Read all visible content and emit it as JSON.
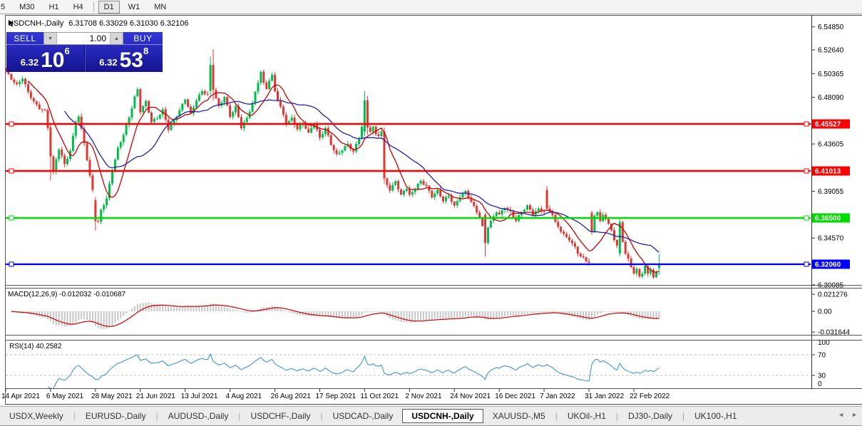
{
  "toolbar": {
    "buttons": [
      "5",
      "M30",
      "H1",
      "H4",
      "D1",
      "W1",
      "MN"
    ],
    "active": "D1"
  },
  "chart": {
    "symbol_title": "USDCNH-,Daily",
    "ohlc_text": "6.31708 6.33029 6.31030 6.32106"
  },
  "trade_panel": {
    "sell_label": "SELL",
    "buy_label": "BUY",
    "volume": "1.00",
    "sell_price": {
      "small": "6.32",
      "big": "10",
      "sup": "6"
    },
    "buy_price": {
      "small": "6.32",
      "big": "53",
      "sup": "8"
    }
  },
  "tabs": {
    "items": [
      {
        "label": "USDX,Weekly",
        "active": false
      },
      {
        "label": "EURUSD-,Daily",
        "active": false
      },
      {
        "label": "AUDUSD-,Daily",
        "active": false
      },
      {
        "label": "USDCHF-,Daily",
        "active": false
      },
      {
        "label": "USDCAD-,Daily",
        "active": false
      },
      {
        "label": "USDCNH-,Daily",
        "active": true
      },
      {
        "label": "XAUUSD-,M5",
        "active": false
      },
      {
        "label": "UKOil-,H1",
        "active": false
      },
      {
        "label": "DJ30-,Daily",
        "active": false
      },
      {
        "label": "UK100-,H1",
        "active": false
      }
    ],
    "nav_left": "◄",
    "nav_right": "►"
  },
  "chart_data": {
    "type": "candlestick",
    "symbol": "USDCNH-",
    "timeframe": "Daily",
    "title": "USDCNH-,Daily",
    "last_candle": {
      "open": 6.31708,
      "high": 6.33029,
      "low": 6.3103,
      "close": 6.32106
    },
    "ylim": [
      6.30085,
      6.5485
    ],
    "price_axis_ticks": [
      "6.54850",
      "6.52640",
      "6.50365",
      "6.48090",
      "6.43605",
      "6.39055",
      "6.34570",
      "6.30085"
    ],
    "hlines": [
      {
        "value": 6.45527,
        "label": "6.45527",
        "color": "#ff0000"
      },
      {
        "value": 6.41013,
        "label": "6.41013",
        "color": "#ff0000"
      },
      {
        "value": 6.365,
        "label": "6.36500",
        "color": "#00dc00"
      },
      {
        "value": 6.3206,
        "label": "6.32060",
        "color": "#0000ff"
      }
    ],
    "time_labels": [
      {
        "label": "14 Apr 2021",
        "bar": 0
      },
      {
        "label": "6 May 2021",
        "bar": 16
      },
      {
        "label": "28 May 2021",
        "bar": 32
      },
      {
        "label": "21 Jun 2021",
        "bar": 48
      },
      {
        "label": "13 Jul 2021",
        "bar": 64
      },
      {
        "label": "4 Aug 2021",
        "bar": 80
      },
      {
        "label": "26 Aug 2021",
        "bar": 96
      },
      {
        "label": "17 Sep 2021",
        "bar": 112
      },
      {
        "label": "11 Oct 2021",
        "bar": 128
      },
      {
        "label": "2 Nov 2021",
        "bar": 144
      },
      {
        "label": "24 Nov 2021",
        "bar": 160
      },
      {
        "label": "16 Dec 2021",
        "bar": 176
      },
      {
        "label": "7 Jan 2022",
        "bar": 192
      },
      {
        "label": "31 Jan 2022",
        "bar": 208
      },
      {
        "label": "22 Feb 2022",
        "bar": 224
      }
    ],
    "bars_total": 234,
    "price_path_anchors": [
      [
        0,
        6.506
      ],
      [
        2,
        6.498
      ],
      [
        4,
        6.492
      ],
      [
        6,
        6.499
      ],
      [
        8,
        6.486
      ],
      [
        10,
        6.477
      ],
      [
        12,
        6.471
      ],
      [
        14,
        6.468
      ],
      [
        15,
        6.452
      ],
      [
        16,
        6.424
      ],
      [
        17,
        6.408
      ],
      [
        18,
        6.421
      ],
      [
        19,
        6.431
      ],
      [
        21,
        6.416
      ],
      [
        23,
        6.429
      ],
      [
        25,
        6.458
      ],
      [
        26,
        6.463
      ],
      [
        28,
        6.438
      ],
      [
        30,
        6.405
      ],
      [
        31,
        6.392
      ],
      [
        32,
        6.362
      ],
      [
        33,
        6.36
      ],
      [
        34,
        6.372
      ],
      [
        36,
        6.383
      ],
      [
        38,
        6.411
      ],
      [
        40,
        6.432
      ],
      [
        42,
        6.446
      ],
      [
        44,
        6.462
      ],
      [
        46,
        6.481
      ],
      [
        47,
        6.488
      ],
      [
        48,
        6.467
      ],
      [
        50,
        6.476
      ],
      [
        52,
        6.457
      ],
      [
        54,
        6.461
      ],
      [
        56,
        6.469
      ],
      [
        58,
        6.451
      ],
      [
        60,
        6.459
      ],
      [
        62,
        6.468
      ],
      [
        64,
        6.479
      ],
      [
        66,
        6.464
      ],
      [
        68,
        6.478
      ],
      [
        70,
        6.487
      ],
      [
        72,
        6.484
      ],
      [
        73,
        6.512
      ],
      [
        74,
        6.488
      ],
      [
        76,
        6.472
      ],
      [
        78,
        6.481
      ],
      [
        80,
        6.462
      ],
      [
        82,
        6.471
      ],
      [
        84,
        6.452
      ],
      [
        86,
        6.461
      ],
      [
        88,
        6.476
      ],
      [
        90,
        6.496
      ],
      [
        91,
        6.506
      ],
      [
        92,
        6.494
      ],
      [
        93,
        6.489
      ],
      [
        94,
        6.497
      ],
      [
        95,
        6.501
      ],
      [
        96,
        6.486
      ],
      [
        98,
        6.471
      ],
      [
        100,
        6.456
      ],
      [
        102,
        6.461
      ],
      [
        104,
        6.451
      ],
      [
        106,
        6.457
      ],
      [
        108,
        6.446
      ],
      [
        110,
        6.456
      ],
      [
        112,
        6.441
      ],
      [
        114,
        6.451
      ],
      [
        116,
        6.436
      ],
      [
        118,
        6.426
      ],
      [
        120,
        6.431
      ],
      [
        122,
        6.436
      ],
      [
        124,
        6.428
      ],
      [
        126,
        6.442
      ],
      [
        127,
        6.452
      ],
      [
        128,
        6.478
      ],
      [
        129,
        6.452
      ],
      [
        130,
        6.448
      ],
      [
        131,
        6.452
      ],
      [
        132,
        6.446
      ],
      [
        133,
        6.445
      ],
      [
        134,
        6.448
      ],
      [
        135,
        6.403
      ],
      [
        136,
        6.398
      ],
      [
        137,
        6.391
      ],
      [
        138,
        6.396
      ],
      [
        139,
        6.401
      ],
      [
        140,
        6.392
      ],
      [
        141,
        6.386
      ],
      [
        142,
        6.391
      ],
      [
        143,
        6.393
      ],
      [
        144,
        6.386
      ],
      [
        146,
        6.394
      ],
      [
        148,
        6.401
      ],
      [
        150,
        6.396
      ],
      [
        152,
        6.386
      ],
      [
        154,
        6.391
      ],
      [
        156,
        6.381
      ],
      [
        158,
        6.386
      ],
      [
        160,
        6.376
      ],
      [
        162,
        6.386
      ],
      [
        164,
        6.391
      ],
      [
        166,
        6.381
      ],
      [
        168,
        6.371
      ],
      [
        169,
        6.366
      ],
      [
        170,
        6.356
      ],
      [
        171,
        6.341
      ],
      [
        172,
        6.356
      ],
      [
        173,
        6.361
      ],
      [
        174,
        6.366
      ],
      [
        175,
        6.371
      ],
      [
        176,
        6.368
      ],
      [
        178,
        6.376
      ],
      [
        180,
        6.371
      ],
      [
        182,
        6.363
      ],
      [
        184,
        6.371
      ],
      [
        186,
        6.376
      ],
      [
        188,
        6.368
      ],
      [
        190,
        6.373
      ],
      [
        192,
        6.371
      ],
      [
        193,
        6.374
      ],
      [
        194,
        6.372
      ],
      [
        195,
        6.369
      ],
      [
        196,
        6.361
      ],
      [
        197,
        6.357
      ],
      [
        198,
        6.353
      ],
      [
        199,
        6.349
      ],
      [
        200,
        6.346
      ],
      [
        201,
        6.344
      ],
      [
        202,
        6.34
      ],
      [
        203,
        6.336
      ],
      [
        204,
        6.331
      ],
      [
        205,
        6.328
      ],
      [
        206,
        6.326
      ],
      [
        207,
        6.324
      ],
      [
        208,
        6.323
      ],
      [
        209,
        6.352
      ],
      [
        210,
        6.368
      ],
      [
        211,
        6.372
      ],
      [
        212,
        6.362
      ],
      [
        213,
        6.368
      ],
      [
        214,
        6.365
      ],
      [
        215,
        6.359
      ],
      [
        216,
        6.352
      ],
      [
        217,
        6.344
      ],
      [
        218,
        6.338
      ],
      [
        219,
        6.361
      ],
      [
        220,
        6.342
      ],
      [
        221,
        6.331
      ],
      [
        222,
        6.325
      ],
      [
        223,
        6.318
      ],
      [
        224,
        6.313
      ],
      [
        225,
        6.316
      ],
      [
        226,
        6.309
      ],
      [
        227,
        6.313
      ],
      [
        228,
        6.319
      ],
      [
        229,
        6.311
      ],
      [
        230,
        6.316
      ],
      [
        231,
        6.308
      ],
      [
        232,
        6.312
      ],
      [
        233,
        6.32106
      ]
    ],
    "special_candles": {
      "16": [
        6.452,
        6.455,
        6.401,
        6.424
      ],
      "32": [
        6.382,
        6.385,
        6.353,
        6.362
      ],
      "73": [
        6.487,
        6.52,
        6.483,
        6.512
      ],
      "74": [
        6.512,
        6.527,
        6.478,
        6.488
      ],
      "128": [
        6.448,
        6.487,
        6.444,
        6.478
      ],
      "129": [
        6.478,
        6.482,
        6.445,
        6.452
      ],
      "135": [
        6.448,
        6.452,
        6.398,
        6.403
      ],
      "171": [
        6.368,
        6.37,
        6.328,
        6.341
      ],
      "193": [
        6.392,
        6.396,
        6.372,
        6.374
      ],
      "209": [
        6.37,
        6.372,
        6.349,
        6.352
      ],
      "219": [
        6.331,
        6.364,
        6.328,
        6.361
      ],
      "233": [
        6.31708,
        6.33029,
        6.3103,
        6.32106
      ]
    },
    "moving_averages": [
      {
        "name": "fast-ma",
        "period": 9,
        "color": "#cc0000"
      },
      {
        "name": "slow-ma",
        "period": 22,
        "color": "#2121aa"
      }
    ],
    "colors": {
      "up": "#00bd4b",
      "down": "#e23632"
    },
    "indicators": {
      "macd": {
        "label": "MACD(12,26,9) -0.012032 -0.010687",
        "params": [
          12,
          26,
          9
        ],
        "current_main": -0.012032,
        "current_signal": -0.010687,
        "axis_ticks": [
          "0.021276",
          "0.00",
          "-0.031644"
        ],
        "histogram_color": "#c6c6c6",
        "signal_color": "#cc0000"
      },
      "rsi": {
        "label": "RSI(14) 40.2582",
        "period": 14,
        "value": 40.2582,
        "axis_ticks": [
          "100",
          "70",
          "30",
          "0"
        ],
        "levels": [
          70,
          30
        ],
        "line_color": "#3f94d6",
        "level_color": "#bcbcbc"
      }
    }
  }
}
